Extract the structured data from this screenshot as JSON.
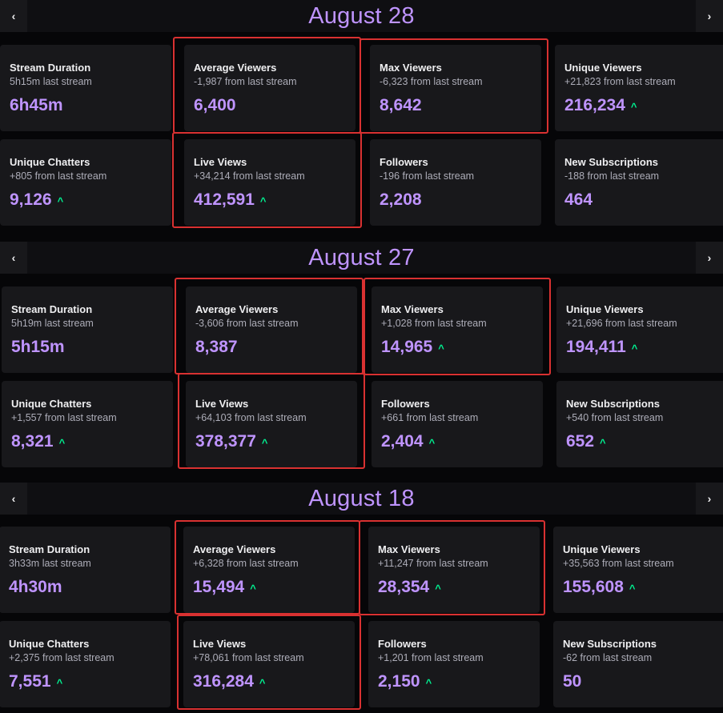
{
  "sections": [
    {
      "date": "August 28",
      "cards": [
        {
          "label": "Stream Duration",
          "sub": "5h15m last stream",
          "value": "6h45m",
          "arrow": false
        },
        {
          "label": "Average Viewers",
          "sub": "-1,987 from last stream",
          "value": "6,400",
          "arrow": false
        },
        {
          "label": "Max Viewers",
          "sub": "-6,323 from last stream",
          "value": "8,642",
          "arrow": false
        },
        {
          "label": "Unique Viewers",
          "sub": "+21,823 from last stream",
          "value": "216,234",
          "arrow": true
        },
        {
          "label": "Unique Chatters",
          "sub": "+805 from last stream",
          "value": "9,126",
          "arrow": true
        },
        {
          "label": "Live Views",
          "sub": "+34,214 from last stream",
          "value": "412,591",
          "arrow": true
        },
        {
          "label": "Followers",
          "sub": "-196 from last stream",
          "value": "2,208",
          "arrow": false
        },
        {
          "label": "New Subscriptions",
          "sub": "-188 from last stream",
          "value": "464",
          "arrow": false
        }
      ]
    },
    {
      "date": "August 27",
      "cards": [
        {
          "label": "Stream Duration",
          "sub": "5h19m last stream",
          "value": "5h15m",
          "arrow": false
        },
        {
          "label": "Average Viewers",
          "sub": "-3,606 from last stream",
          "value": "8,387",
          "arrow": false
        },
        {
          "label": "Max Viewers",
          "sub": "+1,028 from last stream",
          "value": "14,965",
          "arrow": true
        },
        {
          "label": "Unique Viewers",
          "sub": "+21,696 from last stream",
          "value": "194,411",
          "arrow": true
        },
        {
          "label": "Unique Chatters",
          "sub": "+1,557 from last stream",
          "value": "8,321",
          "arrow": true
        },
        {
          "label": "Live Views",
          "sub": "+64,103 from last stream",
          "value": "378,377",
          "arrow": true
        },
        {
          "label": "Followers",
          "sub": "+661 from last stream",
          "value": "2,404",
          "arrow": true
        },
        {
          "label": "New Subscriptions",
          "sub": "+540 from last stream",
          "value": "652",
          "arrow": true
        }
      ]
    },
    {
      "date": "August 18",
      "cards": [
        {
          "label": "Stream Duration",
          "sub": "3h33m last stream",
          "value": "4h30m",
          "arrow": false
        },
        {
          "label": "Average Viewers",
          "sub": "+6,328 from last stream",
          "value": "15,494",
          "arrow": true
        },
        {
          "label": "Max Viewers",
          "sub": "+11,247 from last stream",
          "value": "28,354",
          "arrow": true
        },
        {
          "label": "Unique Viewers",
          "sub": "+35,563 from last stream",
          "value": "155,608",
          "arrow": true
        },
        {
          "label": "Unique Chatters",
          "sub": "+2,375 from last stream",
          "value": "7,551",
          "arrow": true
        },
        {
          "label": "Live Views",
          "sub": "+78,061 from last stream",
          "value": "316,284",
          "arrow": true
        },
        {
          "label": "Followers",
          "sub": "+1,201 from last stream",
          "value": "2,150",
          "arrow": true
        },
        {
          "label": "New Subscriptions",
          "sub": "-62 from last stream",
          "value": "50",
          "arrow": false
        }
      ]
    }
  ],
  "icons": {
    "prev": "chevron-left-icon",
    "next": "chevron-right-icon",
    "up": "chevron-up-icon"
  },
  "colors": {
    "accent": "#bf94ff",
    "positive": "#00f593",
    "highlight": "#d93131"
  }
}
